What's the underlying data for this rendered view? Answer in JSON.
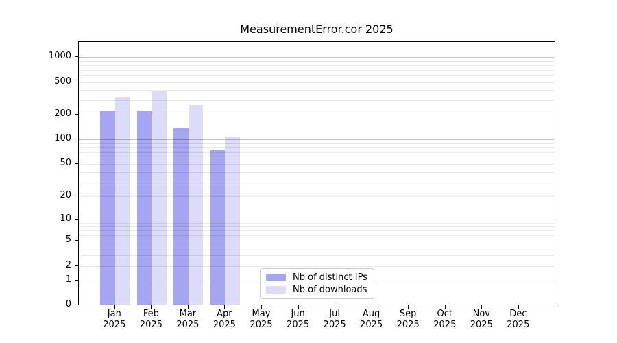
{
  "title": "MeasurementError.cor 2025",
  "chart_data": {
    "type": "bar",
    "title": "MeasurementError.cor 2025",
    "year": "2025",
    "months": [
      "Jan",
      "Feb",
      "Mar",
      "Apr",
      "May",
      "Jun",
      "Jul",
      "Aug",
      "Sep",
      "Oct",
      "Nov",
      "Dec"
    ],
    "categories": [
      "Jan 2025",
      "Feb 2025",
      "Mar 2025",
      "Apr 2025",
      "May 2025",
      "Jun 2025",
      "Jul 2025",
      "Aug 2025",
      "Sep 2025",
      "Oct 2025",
      "Nov 2025",
      "Dec 2025"
    ],
    "series": [
      {
        "name": "Nb of distinct IPs",
        "color": "#a5a5f2",
        "values": [
          220,
          220,
          140,
          74,
          0,
          0,
          0,
          0,
          0,
          0,
          0,
          0
        ]
      },
      {
        "name": "Nb of downloads",
        "color": "#dcdcf8",
        "values": [
          335,
          390,
          265,
          110,
          0,
          0,
          0,
          0,
          0,
          0,
          0,
          0
        ]
      }
    ],
    "xlabel": "",
    "ylabel": "",
    "yscale": "log1p",
    "ylim": [
      0,
      1500
    ],
    "y_ticks": [
      0,
      1,
      2,
      5,
      10,
      20,
      50,
      100,
      200,
      500,
      1000
    ],
    "y_major_gridlines": [
      1,
      10,
      100,
      1000
    ],
    "y_minor_gridlines": [
      2,
      3,
      4,
      5,
      6,
      7,
      8,
      9,
      20,
      30,
      40,
      50,
      60,
      70,
      80,
      90,
      200,
      300,
      400,
      500,
      600,
      700,
      800,
      900
    ],
    "grid": true,
    "legend_position": "inside-bottom-center"
  },
  "colors": {
    "bar_distinct_ips": "#a5a5f2",
    "bar_downloads": "#dcdcf8",
    "axis": "#000000",
    "grid_major": "#c2c2c2",
    "grid_minor": "#e8e8e8",
    "legend_border": "#cccccc",
    "background": "#ffffff",
    "text": "#000000"
  }
}
